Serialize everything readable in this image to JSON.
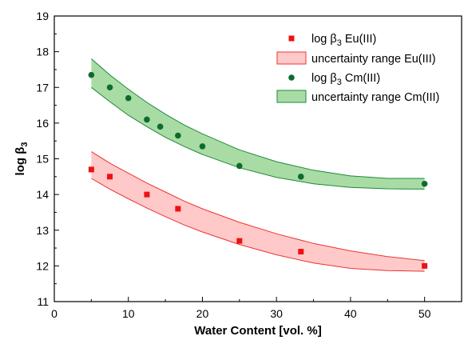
{
  "chart_data": {
    "type": "scatter",
    "xlabel": "Water Content [vol. %]",
    "ylabel": {
      "base": "log β",
      "sub": "3"
    },
    "xlim": [
      0,
      55
    ],
    "ylim": [
      11,
      19
    ],
    "xticks": [
      0,
      10,
      20,
      30,
      40,
      50
    ],
    "yticks": [
      11,
      12,
      13,
      14,
      15,
      16,
      17,
      18,
      19
    ],
    "grid": false,
    "legend_position": "top-right",
    "series": [
      {
        "key": "eu",
        "kind": "points",
        "marker": "square",
        "color": "#ee1111",
        "legend": {
          "pre": "log β",
          "sub": "3",
          "post": " Eu(III)"
        },
        "x": [
          5,
          7.5,
          12.5,
          16.7,
          25,
          33.3,
          50
        ],
        "y": [
          14.7,
          14.5,
          14.0,
          13.6,
          12.7,
          12.4,
          12.0
        ]
      },
      {
        "key": "eu_band",
        "kind": "band",
        "color": "#ee3333",
        "fill": "#ffc9c9",
        "legend": {
          "pre": "uncertainty range Eu(III)"
        },
        "x": [
          5,
          7.5,
          10,
          12.5,
          15,
          17.5,
          20,
          25,
          30,
          35,
          40,
          45,
          50
        ],
        "upper": [
          15.2,
          14.88,
          14.6,
          14.32,
          14.07,
          13.82,
          13.6,
          13.22,
          12.9,
          12.63,
          12.42,
          12.26,
          12.15
        ],
        "lower": [
          14.45,
          14.15,
          13.88,
          13.62,
          13.38,
          13.15,
          12.95,
          12.6,
          12.31,
          12.08,
          11.93,
          11.87,
          11.85
        ]
      },
      {
        "key": "cm",
        "kind": "points",
        "marker": "circle",
        "color": "#0e6b2e",
        "legend": {
          "pre": "log β",
          "sub": "3",
          "post": " Cm(III)"
        },
        "x": [
          5,
          7.5,
          10,
          12.5,
          14.3,
          16.7,
          20,
          25,
          33.3,
          50
        ],
        "y": [
          17.35,
          17.0,
          16.7,
          16.1,
          15.9,
          15.65,
          15.35,
          14.8,
          14.5,
          14.3
        ]
      },
      {
        "key": "cm_band",
        "kind": "band",
        "color": "#1a8a3a",
        "fill": "#a9dca4",
        "legend": {
          "pre": "uncertainty range Cm(III)"
        },
        "x": [
          5,
          7.5,
          10,
          12.5,
          15,
          17.5,
          20,
          25,
          30,
          35,
          40,
          45,
          50
        ],
        "upper": [
          17.8,
          17.35,
          16.95,
          16.58,
          16.25,
          15.95,
          15.7,
          15.25,
          14.92,
          14.68,
          14.52,
          14.45,
          14.45
        ],
        "lower": [
          17.0,
          16.6,
          16.22,
          15.9,
          15.6,
          15.35,
          15.12,
          14.75,
          14.48,
          14.3,
          14.2,
          14.16,
          14.15
        ]
      }
    ]
  }
}
